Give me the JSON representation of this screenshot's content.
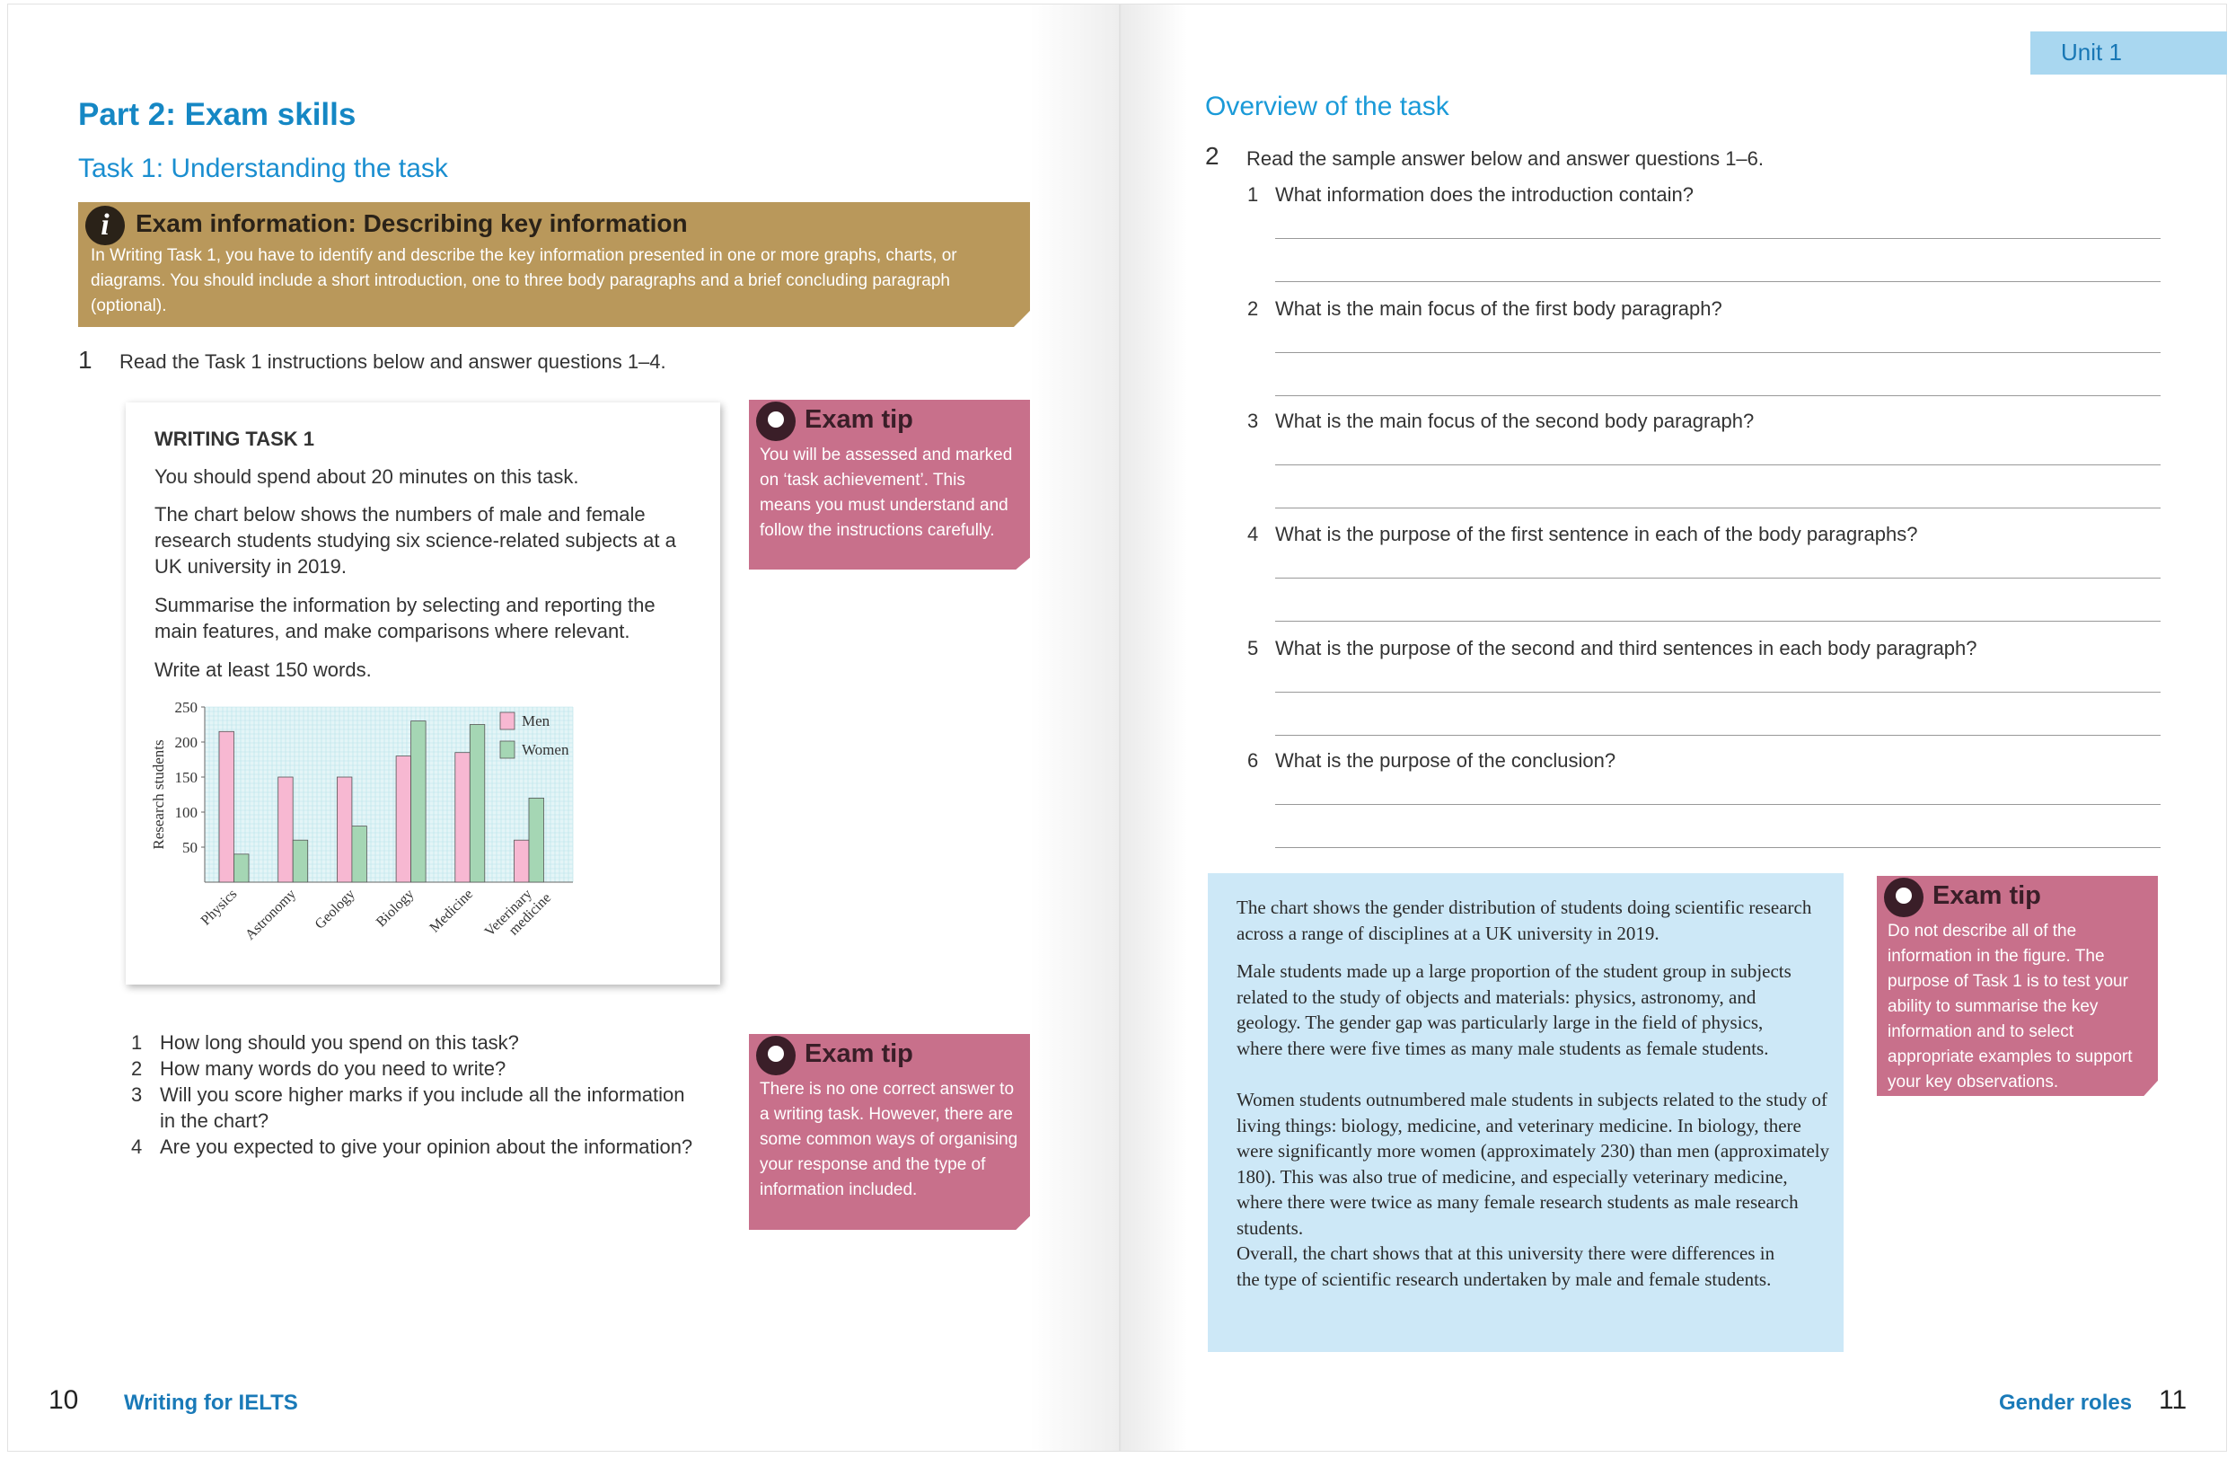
{
  "left_page": {
    "heading": "Part 2: Exam skills",
    "subheading": "Task 1: Understanding the task",
    "exam_info": {
      "icon": "info-icon",
      "title": "Exam information: Describing key information",
      "body": "In Writing Task 1, you have to identify and describe the key information presented in one or more graphs, charts, or diagrams. You should include a short introduction, one to three body paragraphs and a brief concluding paragraph (optional)."
    },
    "exercise": {
      "number": "1",
      "instruction": "Read the Task 1 instructions below and answer questions 1–4."
    },
    "writing_task": {
      "title": "WRITING TASK 1",
      "p1": "You should spend about 20 minutes on this task.",
      "p2": "The chart below shows the numbers of male and female research students studying six science-related subjects at a UK university in 2019.",
      "p3": "Summarise the information by selecting and reporting the main features, and make comparisons where relevant.",
      "p4": "Write at least 150 words."
    },
    "tip1": {
      "title": "Exam tip",
      "body": "You will be assessed and marked on ‘task achievement’. This means you must understand and follow the instructions carefully."
    },
    "questions": [
      {
        "n": "1",
        "text": "How long should you spend on this task?"
      },
      {
        "n": "2",
        "text": "How many words do you need to write?"
      },
      {
        "n": "3",
        "text": "Will you score higher marks if you include all the information in the chart?"
      },
      {
        "n": "4",
        "text": "Are you expected to give your opinion about the information?"
      }
    ],
    "tip2": {
      "title": "Exam tip",
      "body": "There is no one correct answer to a writing task. However, there are some common ways of organising your response and the type of information included."
    },
    "page_number": "10",
    "footer": "Writing for IELTS"
  },
  "chart_data": {
    "type": "bar",
    "categories": [
      "Physics",
      "Astronomy",
      "Geology",
      "Biology",
      "Medicine",
      "Veterinary medicine"
    ],
    "series": [
      {
        "name": "Men",
        "values": [
          215,
          150,
          150,
          180,
          185,
          60
        ],
        "color": "#f7b8d2"
      },
      {
        "name": "Women",
        "values": [
          40,
          60,
          80,
          230,
          225,
          120
        ],
        "color": "#a5d6b4"
      }
    ],
    "ylabel": "Research students",
    "yticks": [
      50,
      100,
      150,
      200,
      250
    ],
    "ylim": [
      0,
      250
    ],
    "grid": true,
    "legend": "top-right"
  },
  "right_page": {
    "unit_tab": "Unit 1",
    "heading": "Overview of the task",
    "exercise": {
      "number": "2",
      "instruction": "Read the sample answer below and answer questions 1–6."
    },
    "questions": [
      {
        "n": "1",
        "text": "What information does the introduction contain?"
      },
      {
        "n": "2",
        "text": "What is the main focus of the first body paragraph?"
      },
      {
        "n": "3",
        "text": "What is the main focus of the second body paragraph?"
      },
      {
        "n": "4",
        "text": "What is the purpose of the first sentence in each of the body paragraphs?"
      },
      {
        "n": "5",
        "text": "What is the purpose of the second and third sentences in each body paragraph?"
      },
      {
        "n": "6",
        "text": "What is the purpose of the conclusion?"
      }
    ],
    "sample_answer": [
      "The chart shows the gender distribution of students doing scientific research across a range of disciplines at a UK university in 2019.",
      "Male students made up a large proportion of the student group in subjects related to the study of objects and materials: physics, astronomy, and geology. The gender gap was particularly large in the field of physics, where there were five times as many male students as female students.",
      "Women students outnumbered male students in subjects related to the study of living things: biology, medicine, and veterinary medicine. In biology, there were significantly more women (approximately 230) than men (approximately 180). This was also true of medicine, and especially veterinary medicine, where there were twice as many female research students as male research students.",
      "Overall, the chart shows that at this university there were differences in the type of scientific research undertaken by male and female students."
    ],
    "tip3": {
      "title": "Exam tip",
      "body": "Do not describe all of the information in the figure. The purpose of Task 1 is to test your ability to summarise the key information and to select appropriate examples to support your key observations."
    },
    "footer": "Gender roles",
    "page_number": "11"
  },
  "colors": {
    "heading": "#1587c4",
    "exam_info": "#b9985b",
    "exam_tip": "#c8708b",
    "sample_box": "#cde8f7",
    "unit_tab": "#a9d7f0"
  }
}
